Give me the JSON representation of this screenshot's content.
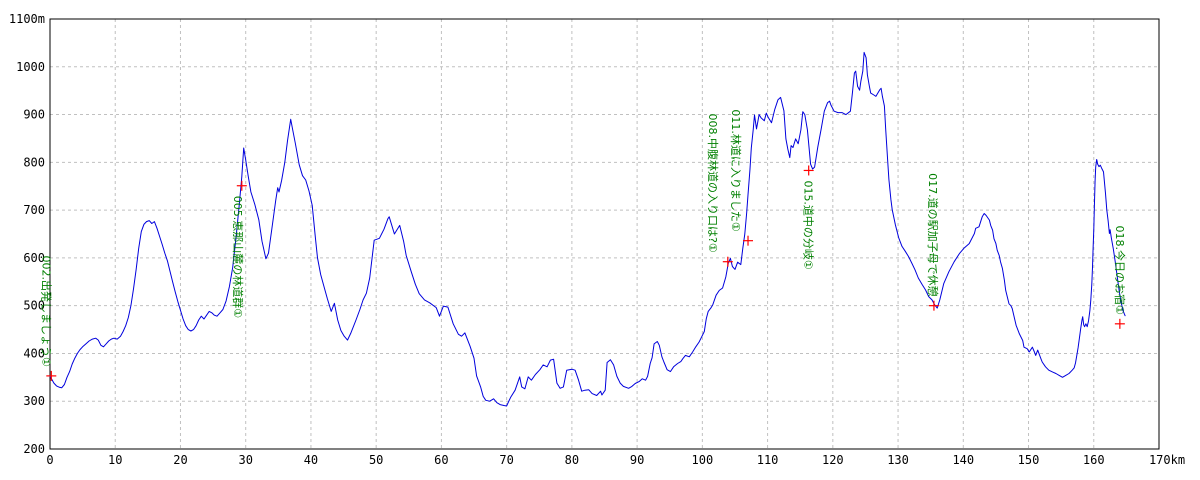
{
  "chart_data": {
    "type": "line",
    "title": "",
    "legend": [],
    "grid": "dashed",
    "x_axis": {
      "unit": "km",
      "min": 0,
      "max": 170,
      "tick_interval": 10,
      "ticks": [
        0,
        10,
        20,
        30,
        40,
        50,
        60,
        70,
        80,
        90,
        100,
        110,
        120,
        130,
        140,
        150,
        160
      ],
      "end_label": "170km"
    },
    "y_axis": {
      "unit": "m",
      "min": 200,
      "max": 1100,
      "tick_interval": 100,
      "ticks": [
        200,
        300,
        400,
        500,
        600,
        700,
        800,
        900,
        1000
      ],
      "top_label": "1100m"
    },
    "colors": {
      "background": "#ffffff",
      "axis": "#000000",
      "grid": "#c0c0c0",
      "line": "#0000dd",
      "marker": "#ff0000",
      "annotation": "#008000"
    },
    "track": [
      [
        0,
        352
      ],
      [
        0.3,
        345
      ],
      [
        0.6,
        338
      ],
      [
        1,
        332
      ],
      [
        1.5,
        329
      ],
      [
        1.8,
        328
      ],
      [
        2.2,
        335
      ],
      [
        2.6,
        350
      ],
      [
        3,
        362
      ],
      [
        3.4,
        378
      ],
      [
        3.8,
        390
      ],
      [
        4.2,
        400
      ],
      [
        4.6,
        408
      ],
      [
        5,
        414
      ],
      [
        5.5,
        420
      ],
      [
        6,
        426
      ],
      [
        6.5,
        430
      ],
      [
        7,
        432
      ],
      [
        7.4,
        428
      ],
      [
        7.8,
        417
      ],
      [
        8.2,
        414
      ],
      [
        8.6,
        420
      ],
      [
        9,
        426
      ],
      [
        9.4,
        430
      ],
      [
        9.8,
        432
      ],
      [
        10.3,
        430
      ],
      [
        10.8,
        436
      ],
      [
        11.2,
        446
      ],
      [
        11.6,
        458
      ],
      [
        12,
        475
      ],
      [
        12.4,
        500
      ],
      [
        12.8,
        535
      ],
      [
        13.2,
        575
      ],
      [
        13.6,
        620
      ],
      [
        14,
        655
      ],
      [
        14.4,
        670
      ],
      [
        14.8,
        676
      ],
      [
        15.2,
        678
      ],
      [
        15.6,
        672
      ],
      [
        16,
        676
      ],
      [
        16.4,
        662
      ],
      [
        16.8,
        645
      ],
      [
        17.2,
        628
      ],
      [
        17.6,
        610
      ],
      [
        18,
        594
      ],
      [
        18.4,
        572
      ],
      [
        18.8,
        550
      ],
      [
        19.2,
        528
      ],
      [
        19.6,
        508
      ],
      [
        20,
        490
      ],
      [
        20.4,
        472
      ],
      [
        20.8,
        458
      ],
      [
        21.2,
        450
      ],
      [
        21.6,
        447
      ],
      [
        22,
        450
      ],
      [
        22.4,
        458
      ],
      [
        22.8,
        470
      ],
      [
        23.2,
        478
      ],
      [
        23.6,
        472
      ],
      [
        24,
        480
      ],
      [
        24.4,
        488
      ],
      [
        24.8,
        485
      ],
      [
        25.2,
        480
      ],
      [
        25.6,
        478
      ],
      [
        26,
        484
      ],
      [
        26.5,
        492
      ],
      [
        27,
        510
      ],
      [
        27.5,
        540
      ],
      [
        28,
        580
      ],
      [
        28.5,
        640
      ],
      [
        29,
        710
      ],
      [
        29.4,
        770
      ],
      [
        29.7,
        830
      ],
      [
        30,
        805
      ],
      [
        30.4,
        770
      ],
      [
        30.8,
        738
      ],
      [
        31.4,
        712
      ],
      [
        32,
        680
      ],
      [
        32.5,
        635
      ],
      [
        33.1,
        598
      ],
      [
        33.5,
        610
      ],
      [
        34,
        660
      ],
      [
        34.6,
        720
      ],
      [
        34.9,
        747
      ],
      [
        35.1,
        738
      ],
      [
        35.5,
        762
      ],
      [
        36,
        800
      ],
      [
        36.4,
        845
      ],
      [
        36.9,
        890
      ],
      [
        37.2,
        868
      ],
      [
        37.6,
        840
      ],
      [
        38.2,
        795
      ],
      [
        38.7,
        772
      ],
      [
        39.2,
        763
      ],
      [
        39.7,
        740
      ],
      [
        40.2,
        710
      ],
      [
        40.7,
        640
      ],
      [
        41,
        600
      ],
      [
        41.5,
        565
      ],
      [
        42,
        540
      ],
      [
        42.5,
        515
      ],
      [
        43.1,
        488
      ],
      [
        43.6,
        505
      ],
      [
        44.1,
        470
      ],
      [
        44.6,
        448
      ],
      [
        45.1,
        436
      ],
      [
        45.6,
        428
      ],
      [
        46.1,
        442
      ],
      [
        46.9,
        470
      ],
      [
        47.5,
        492
      ],
      [
        48,
        512
      ],
      [
        48.5,
        526
      ],
      [
        49,
        558
      ],
      [
        49.7,
        637
      ],
      [
        50.5,
        641
      ],
      [
        51.2,
        660
      ],
      [
        51.8,
        682
      ],
      [
        52,
        686
      ],
      [
        52.8,
        650
      ],
      [
        53.6,
        668
      ],
      [
        54.2,
        635
      ],
      [
        54.6,
        605
      ],
      [
        55.4,
        570
      ],
      [
        56,
        545
      ],
      [
        56.6,
        525
      ],
      [
        57.4,
        512
      ],
      [
        58.2,
        506
      ],
      [
        59.2,
        496
      ],
      [
        59.7,
        478
      ],
      [
        60.3,
        499
      ],
      [
        61,
        497
      ],
      [
        61.8,
        462
      ],
      [
        62.6,
        440
      ],
      [
        63.1,
        436
      ],
      [
        63.6,
        443
      ],
      [
        64.4,
        415
      ],
      [
        65,
        390
      ],
      [
        65.4,
        353
      ],
      [
        66,
        330
      ],
      [
        66.4,
        310
      ],
      [
        66.8,
        302
      ],
      [
        67.4,
        300
      ],
      [
        68,
        305
      ],
      [
        68.5,
        297
      ],
      [
        69,
        293
      ],
      [
        69.6,
        291
      ],
      [
        70,
        290
      ],
      [
        70.6,
        308
      ],
      [
        71.3,
        323
      ],
      [
        72,
        351
      ],
      [
        72.3,
        330
      ],
      [
        72.8,
        326
      ],
      [
        73.3,
        351
      ],
      [
        73.8,
        344
      ],
      [
        74.4,
        356
      ],
      [
        75.1,
        366
      ],
      [
        75.6,
        376
      ],
      [
        76.2,
        372
      ],
      [
        76.7,
        386
      ],
      [
        77.2,
        388
      ],
      [
        77.7,
        338
      ],
      [
        78.2,
        327
      ],
      [
        78.7,
        330
      ],
      [
        79.2,
        365
      ],
      [
        80,
        367
      ],
      [
        80.5,
        365
      ],
      [
        81,
        345
      ],
      [
        81.5,
        321
      ],
      [
        82,
        323
      ],
      [
        82.6,
        324
      ],
      [
        83.1,
        316
      ],
      [
        83.8,
        312
      ],
      [
        84.4,
        321
      ],
      [
        84.6,
        313
      ],
      [
        85.1,
        323
      ],
      [
        85.4,
        381
      ],
      [
        85.9,
        387
      ],
      [
        86.4,
        376
      ],
      [
        86.9,
        352
      ],
      [
        87.4,
        338
      ],
      [
        87.9,
        331
      ],
      [
        88.7,
        327
      ],
      [
        89.2,
        331
      ],
      [
        89.7,
        337
      ],
      [
        90.3,
        341
      ],
      [
        90.8,
        347
      ],
      [
        91.3,
        344
      ],
      [
        91.6,
        352
      ],
      [
        92,
        379
      ],
      [
        92.3,
        391
      ],
      [
        92.6,
        420
      ],
      [
        93.1,
        425
      ],
      [
        93.4,
        417
      ],
      [
        93.8,
        393
      ],
      [
        94.1,
        382
      ],
      [
        94.6,
        366
      ],
      [
        95.1,
        362
      ],
      [
        95.6,
        372
      ],
      [
        96.2,
        379
      ],
      [
        96.7,
        383
      ],
      [
        97,
        389
      ],
      [
        97.4,
        396
      ],
      [
        98,
        393
      ],
      [
        98.5,
        403
      ],
      [
        99,
        414
      ],
      [
        99.5,
        424
      ],
      [
        99.8,
        432
      ],
      [
        100.3,
        446
      ],
      [
        100.6,
        473
      ],
      [
        100.9,
        488
      ],
      [
        101.3,
        495
      ],
      [
        101.6,
        502
      ],
      [
        102.1,
        522
      ],
      [
        102.6,
        532
      ],
      [
        103.1,
        537
      ],
      [
        103.6,
        560
      ],
      [
        104,
        590
      ],
      [
        104.3,
        599
      ],
      [
        104.6,
        582
      ],
      [
        105,
        576
      ],
      [
        105.4,
        591
      ],
      [
        105.9,
        586
      ],
      [
        106.2,
        620
      ],
      [
        106.5,
        650
      ],
      [
        106.8,
        695
      ],
      [
        107,
        732
      ],
      [
        107.3,
        786
      ],
      [
        107.5,
        830
      ],
      [
        107.8,
        868
      ],
      [
        108,
        899
      ],
      [
        108.3,
        870
      ],
      [
        108.7,
        900
      ],
      [
        109,
        893
      ],
      [
        109.5,
        887
      ],
      [
        109.8,
        903
      ],
      [
        110.1,
        894
      ],
      [
        110.6,
        883
      ],
      [
        111.1,
        911
      ],
      [
        111.6,
        931
      ],
      [
        112,
        936
      ],
      [
        112.5,
        908
      ],
      [
        112.8,
        849
      ],
      [
        113.1,
        828
      ],
      [
        113.4,
        810
      ],
      [
        113.6,
        835
      ],
      [
        113.9,
        831
      ],
      [
        114.3,
        849
      ],
      [
        114.7,
        839
      ],
      [
        115.1,
        868
      ],
      [
        115.4,
        906
      ],
      [
        115.7,
        900
      ],
      [
        116.1,
        868
      ],
      [
        116.6,
        796
      ],
      [
        116.9,
        786
      ],
      [
        117.2,
        790
      ],
      [
        117.7,
        832
      ],
      [
        118.2,
        869
      ],
      [
        118.7,
        907
      ],
      [
        119.2,
        925
      ],
      [
        119.5,
        928
      ],
      [
        119.7,
        920
      ],
      [
        120.2,
        907
      ],
      [
        120.8,
        904
      ],
      [
        121.4,
        904
      ],
      [
        122,
        900
      ],
      [
        122.7,
        907
      ],
      [
        123,
        945
      ],
      [
        123.3,
        987
      ],
      [
        123.5,
        991
      ],
      [
        123.8,
        959
      ],
      [
        124.1,
        951
      ],
      [
        124.3,
        970
      ],
      [
        124.6,
        991
      ],
      [
        124.8,
        1030
      ],
      [
        125.1,
        1019
      ],
      [
        125.3,
        983
      ],
      [
        125.6,
        959
      ],
      [
        125.8,
        945
      ],
      [
        126.3,
        941
      ],
      [
        126.6,
        938
      ],
      [
        126.9,
        945
      ],
      [
        127.2,
        952
      ],
      [
        127.4,
        955
      ],
      [
        127.6,
        938
      ],
      [
        127.9,
        918
      ],
      [
        128.1,
        869
      ],
      [
        128.4,
        806
      ],
      [
        128.6,
        764
      ],
      [
        128.9,
        722
      ],
      [
        129.1,
        701
      ],
      [
        129.6,
        669
      ],
      [
        130.1,
        642
      ],
      [
        130.6,
        624
      ],
      [
        131.1,
        614
      ],
      [
        131.6,
        603
      ],
      [
        132.1,
        589
      ],
      [
        132.6,
        575
      ],
      [
        133.1,
        558
      ],
      [
        133.7,
        544
      ],
      [
        134.2,
        533
      ],
      [
        134.7,
        519
      ],
      [
        135.2,
        512
      ],
      [
        135.6,
        502
      ],
      [
        136,
        495
      ],
      [
        136.4,
        512
      ],
      [
        137,
        546
      ],
      [
        137.8,
        571
      ],
      [
        138.6,
        592
      ],
      [
        139.4,
        609
      ],
      [
        140.1,
        620
      ],
      [
        140.9,
        630
      ],
      [
        141.7,
        651
      ],
      [
        141.9,
        662
      ],
      [
        142.4,
        665
      ],
      [
        142.9,
        686
      ],
      [
        143.2,
        693
      ],
      [
        143.5,
        689
      ],
      [
        144,
        679
      ],
      [
        144.2,
        668
      ],
      [
        144.5,
        658
      ],
      [
        144.7,
        640
      ],
      [
        145,
        630
      ],
      [
        145.2,
        616
      ],
      [
        145.5,
        605
      ],
      [
        145.7,
        592
      ],
      [
        146,
        578
      ],
      [
        146.3,
        553
      ],
      [
        146.5,
        532
      ],
      [
        146.8,
        515
      ],
      [
        147,
        504
      ],
      [
        147.3,
        500
      ],
      [
        147.5,
        494
      ],
      [
        147.8,
        476
      ],
      [
        148.1,
        459
      ],
      [
        148.6,
        441
      ],
      [
        149.1,
        427
      ],
      [
        149.3,
        413
      ],
      [
        149.8,
        410
      ],
      [
        150.1,
        403
      ],
      [
        150.6,
        413
      ],
      [
        150.9,
        403
      ],
      [
        151.1,
        396
      ],
      [
        151.4,
        407
      ],
      [
        151.9,
        389
      ],
      [
        152.1,
        382
      ],
      [
        152.6,
        372
      ],
      [
        153.1,
        365
      ],
      [
        153.7,
        361
      ],
      [
        154.2,
        358
      ],
      [
        154.7,
        354
      ],
      [
        155.2,
        350
      ],
      [
        155.7,
        354
      ],
      [
        156.2,
        358
      ],
      [
        156.7,
        365
      ],
      [
        157,
        370
      ],
      [
        157.2,
        380
      ],
      [
        157.4,
        396
      ],
      [
        157.6,
        412
      ],
      [
        157.8,
        432
      ],
      [
        158,
        452
      ],
      [
        158.2,
        470
      ],
      [
        158.3,
        477
      ],
      [
        158.45,
        460
      ],
      [
        158.6,
        456
      ],
      [
        158.8,
        462
      ],
      [
        159,
        456
      ],
      [
        159.2,
        468
      ],
      [
        159.4,
        490
      ],
      [
        159.55,
        512
      ],
      [
        159.7,
        545
      ],
      [
        159.8,
        580
      ],
      [
        159.9,
        620
      ],
      [
        160,
        660
      ],
      [
        160.1,
        710
      ],
      [
        160.2,
        762
      ],
      [
        160.3,
        790
      ],
      [
        160.45,
        806
      ],
      [
        160.6,
        796
      ],
      [
        160.8,
        791
      ],
      [
        161,
        794
      ],
      [
        161.2,
        788
      ],
      [
        161.5,
        780
      ],
      [
        161.8,
        735
      ],
      [
        162,
        700
      ],
      [
        162.2,
        678
      ],
      [
        162.4,
        651
      ],
      [
        162.5,
        659
      ],
      [
        162.7,
        641
      ],
      [
        163,
        619
      ],
      [
        163.3,
        591
      ],
      [
        163.6,
        561
      ],
      [
        163.9,
        531
      ],
      [
        164.2,
        506
      ],
      [
        164.5,
        489
      ],
      [
        164.8,
        479
      ]
    ],
    "waypoints": [
      {
        "label": "002.出発しましょう①",
        "km": 0.2,
        "elevation_m": 353,
        "label_position": "above",
        "label_dx": -9
      },
      {
        "label": "005.恵那山麓の林道群①",
        "km": 29.4,
        "elevation_m": 751,
        "label_position": "below",
        "label_dx": -8
      },
      {
        "label": "008.中腹林道の入り口は?①",
        "km": 103.9,
        "elevation_m": 592,
        "label_position": "above",
        "label_dx": -19
      },
      {
        "label": "011.林道に入りました①",
        "km": 107.0,
        "elevation_m": 636,
        "label_position": "above",
        "label_dx": -16
      },
      {
        "label": "015.道中の分岐①",
        "km": 116.3,
        "elevation_m": 783,
        "label_position": "below",
        "label_dx": -4
      },
      {
        "label": "017.道の駅加子母で休憩",
        "km": 135.5,
        "elevation_m": 500,
        "label_position": "above",
        "label_dx": -5
      },
      {
        "label": "018.今日のお宿①",
        "km": 164.0,
        "elevation_m": 462,
        "label_position": "above",
        "label_dx": -4
      }
    ]
  }
}
